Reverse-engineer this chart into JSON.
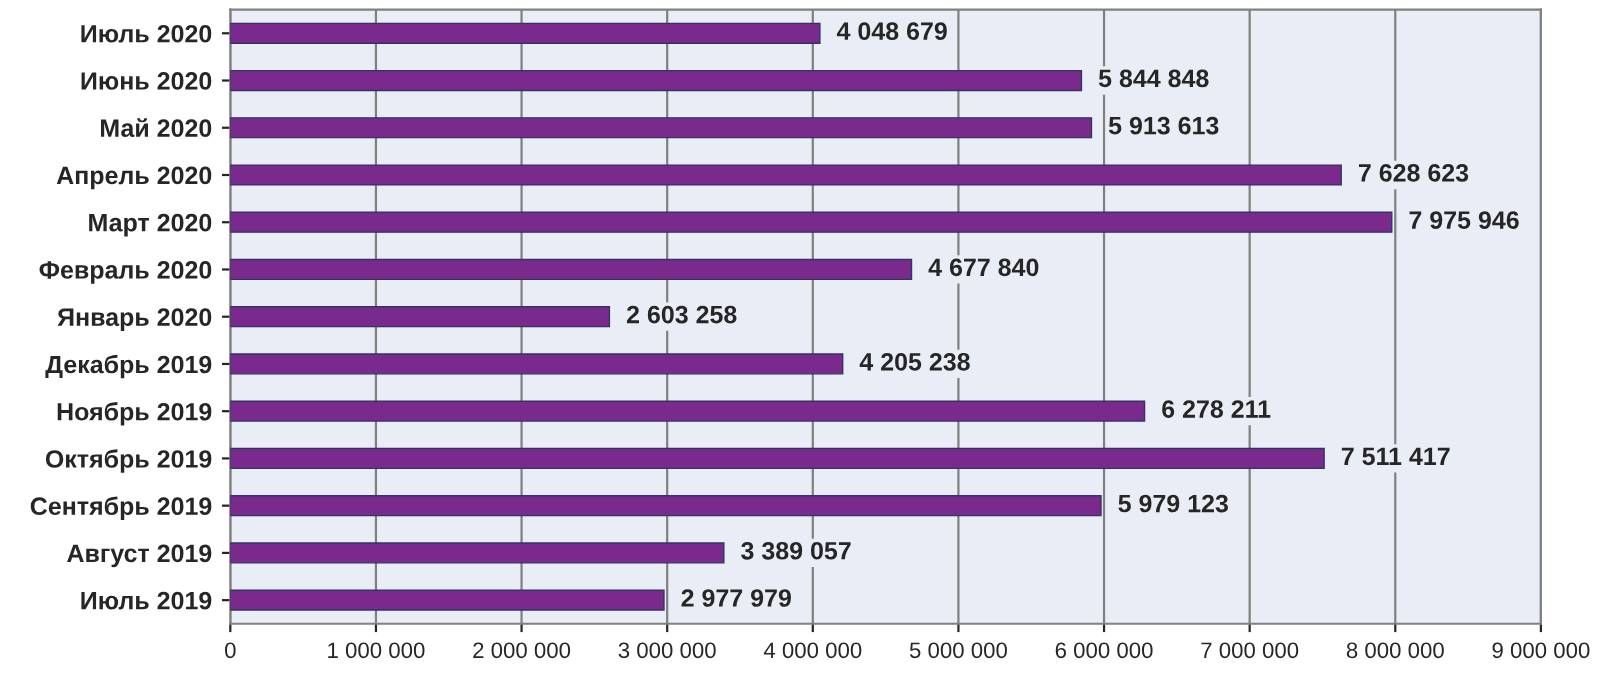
{
  "chart_data": {
    "type": "bar",
    "orientation": "horizontal",
    "categories": [
      "Июль 2020",
      "Июнь 2020",
      "Май 2020",
      "Апрель 2020",
      "Март 2020",
      "Февраль 2020",
      "Январь 2020",
      "Декабрь 2019",
      "Ноябрь 2019",
      "Октябрь 2019",
      "Сентябрь 2019",
      "Август 2019",
      "Июль 2019"
    ],
    "values": [
      4048679,
      5844848,
      5913613,
      7628623,
      7975946,
      4677840,
      2603258,
      4205238,
      6278211,
      7511417,
      5979123,
      3389057,
      2977979
    ],
    "value_labels": [
      "4 048 679",
      "5 844 848",
      "5 913 613",
      "7 628 623",
      "7 975 946",
      "4 677 840",
      "2 603 258",
      "4 205 238",
      "6 278 211",
      "7 511 417",
      "5 979 123",
      "3 389 057",
      "2 977 979"
    ],
    "color": "#7a2a8c",
    "xlim": [
      0,
      9000000
    ],
    "xticks": [
      0,
      {
        "value": 1000000,
        "label": "1 000 000"
      },
      {
        "value": 2000000,
        "label": "2 000 000"
      },
      {
        "value": 3000000,
        "label": "3 000 000"
      },
      {
        "value": 4000000,
        "label": "4 000 000"
      },
      {
        "value": 5000000,
        "label": "5 000 000"
      },
      {
        "value": 6000000,
        "label": "6 000 000"
      },
      {
        "value": 7000000,
        "label": "7 000 000"
      },
      {
        "value": 8000000,
        "label": "8 000 000"
      },
      {
        "value": 9000000,
        "label": "9 000 000"
      }
    ],
    "grid": "x",
    "legend": false
  }
}
